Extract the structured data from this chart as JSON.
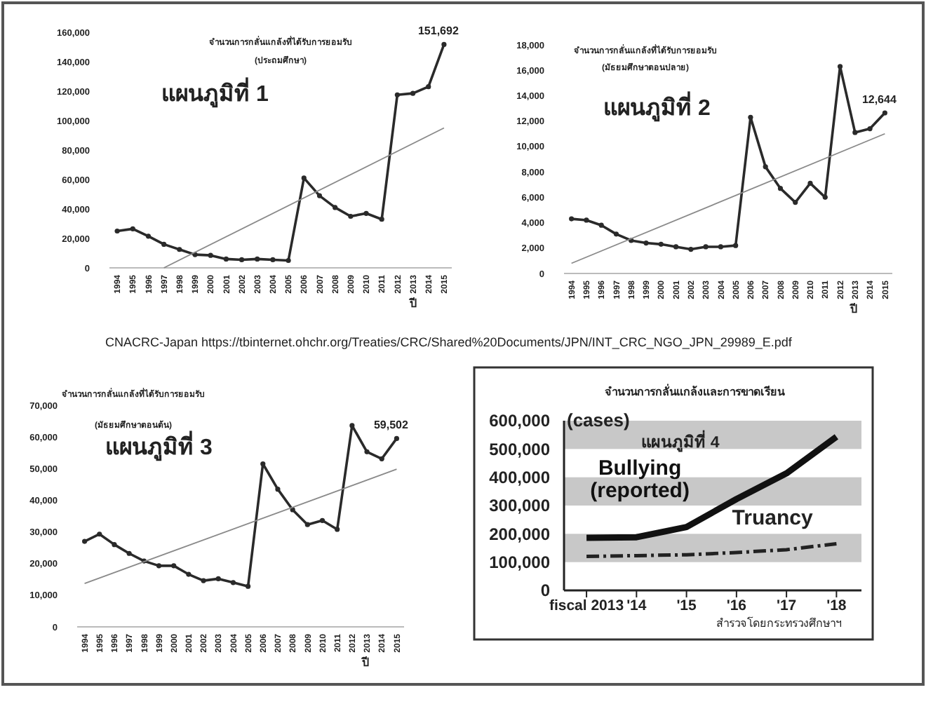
{
  "chart_data": [
    {
      "type": "line",
      "title": "จำนวนการกลั่นแกล้งที่ได้รับการยอมรับ",
      "subtitle": "(ประถมศึกษา)",
      "xlabel": "ปี",
      "x": [
        1994,
        1995,
        1996,
        1997,
        1998,
        1999,
        2000,
        2001,
        2002,
        2003,
        2004,
        2005,
        2006,
        2007,
        2008,
        2009,
        2010,
        2011,
        2012,
        2013,
        2014,
        2015
      ],
      "xlim": [
        1993.5,
        2015.5
      ],
      "xticks": [
        1994,
        1995,
        1996,
        1997,
        1998,
        1999,
        2000,
        2001,
        2002,
        2003,
        2004,
        2005,
        2006,
        2007,
        2008,
        2009,
        2010,
        2011,
        2012,
        2013,
        2014,
        2015
      ],
      "ylim": [
        0,
        160000
      ],
      "yticks": [
        {
          "value": 0,
          "label": "0"
        },
        {
          "value": 20000,
          "label": "20,000"
        },
        {
          "value": 40000,
          "label": "40,000"
        },
        {
          "value": 60000,
          "label": "60,000"
        },
        {
          "value": 80000,
          "label": "80,000"
        },
        {
          "value": 100000,
          "label": "100,000"
        },
        {
          "value": 120000,
          "label": "120,000"
        },
        {
          "value": 140000,
          "label": "140,000"
        },
        {
          "value": 160000,
          "label": "160,000"
        }
      ],
      "grid": false,
      "legend": false,
      "series": [
        {
          "color": "#2a2a2a",
          "marker": "circle",
          "values": [
            25000,
            26500,
            21500,
            16000,
            12500,
            9000,
            8500,
            6000,
            5500,
            6000,
            5500,
            5000,
            61000,
            49000,
            41000,
            35000,
            37000,
            33000,
            117500,
            118500,
            123000,
            151692
          ],
          "value_labels": [
            null,
            null,
            null,
            null,
            null,
            null,
            null,
            null,
            null,
            null,
            null,
            null,
            null,
            null,
            null,
            null,
            null,
            null,
            null,
            null,
            null,
            "151,692"
          ]
        },
        {
          "type": "line",
          "color": "#8a8a8a",
          "marker": "none",
          "x": [
            1997,
            2015
          ],
          "values": [
            0,
            95000
          ]
        }
      ],
      "annotations": [
        "แผนภูมิที่ 1",
        "CNACRC-Japan https://tbinternet.ohchr.org/Treaties/CRC/Shared%20Documents/JPN/INT_CRC_NGO_JPN_29989_E.pdf"
      ]
    },
    {
      "type": "line",
      "title": "จำนวนการกลั่นแกล้งที่ได้รับการยอมรับ",
      "subtitle": "(มัธยมศึกษาตอนปลาย)",
      "xlabel": "ปี",
      "x": [
        1994,
        1995,
        1996,
        1997,
        1998,
        1999,
        2000,
        2001,
        2002,
        2003,
        2004,
        2005,
        2006,
        2007,
        2008,
        2009,
        2010,
        2011,
        2012,
        2013,
        2014,
        2015
      ],
      "xlim": [
        1993.5,
        2015.5
      ],
      "xticks": [
        1994,
        1995,
        1996,
        1997,
        1998,
        1999,
        2000,
        2001,
        2002,
        2003,
        2004,
        2005,
        2006,
        2007,
        2008,
        2009,
        2010,
        2011,
        2012,
        2013,
        2014,
        2015
      ],
      "ylim": [
        0,
        18000
      ],
      "yticks": [
        {
          "value": 0,
          "label": "0"
        },
        {
          "value": 2000,
          "label": "2,000"
        },
        {
          "value": 4000,
          "label": "4,000"
        },
        {
          "value": 6000,
          "label": "6,000"
        },
        {
          "value": 8000,
          "label": "8,000"
        },
        {
          "value": 10000,
          "label": "10,000"
        },
        {
          "value": 12000,
          "label": "12,000"
        },
        {
          "value": 14000,
          "label": "14,000"
        },
        {
          "value": 16000,
          "label": "16,000"
        },
        {
          "value": 18000,
          "label": "18,000"
        }
      ],
      "grid": false,
      "legend": false,
      "series": [
        {
          "color": "#2a2a2a",
          "marker": "circle",
          "values": [
            4300,
            4200,
            3800,
            3100,
            2600,
            2400,
            2300,
            2100,
            1900,
            2100,
            2100,
            2200,
            12300,
            8400,
            6700,
            5600,
            7100,
            6000,
            16300,
            11100,
            11400,
            12644
          ],
          "value_labels": [
            null,
            null,
            null,
            null,
            null,
            null,
            null,
            null,
            null,
            null,
            null,
            null,
            null,
            null,
            null,
            null,
            null,
            null,
            null,
            null,
            null,
            "12,644"
          ]
        },
        {
          "type": "line",
          "color": "#8a8a8a",
          "marker": "none",
          "x": [
            1994,
            2015
          ],
          "values": [
            800,
            11000
          ]
        }
      ],
      "annotations": [
        "แผนภูมิที่ 2"
      ]
    },
    {
      "type": "line",
      "title": "จำนวนการกลั่นแกล้งที่ได้รับการยอมรับ",
      "subtitle": "(มัธยมศึกษาตอนต้น)",
      "xlabel": "ปี",
      "x": [
        1994,
        1995,
        1996,
        1997,
        1998,
        1999,
        2000,
        2001,
        2002,
        2003,
        2004,
        2005,
        2006,
        2007,
        2008,
        2009,
        2010,
        2011,
        2012,
        2013,
        2014,
        2015
      ],
      "xlim": [
        1993.5,
        2015.5
      ],
      "xticks": [
        1994,
        1995,
        1996,
        1997,
        1998,
        1999,
        2000,
        2001,
        2002,
        2003,
        2004,
        2005,
        2006,
        2007,
        2008,
        2009,
        2010,
        2011,
        2012,
        2013,
        2014,
        2015
      ],
      "ylim": [
        0,
        70000
      ],
      "yticks": [
        {
          "value": 0,
          "label": "0"
        },
        {
          "value": 10000,
          "label": "10,000"
        },
        {
          "value": 20000,
          "label": "20,000"
        },
        {
          "value": 30000,
          "label": "30,000"
        },
        {
          "value": 40000,
          "label": "40,000"
        },
        {
          "value": 50000,
          "label": "50,000"
        },
        {
          "value": 60000,
          "label": "60,000"
        },
        {
          "value": 70000,
          "label": "70,000"
        }
      ],
      "grid": false,
      "legend": false,
      "series": [
        {
          "color": "#2a2a2a",
          "marker": "circle",
          "values": [
            27000,
            29300,
            26000,
            23200,
            20800,
            19300,
            19300,
            16600,
            14600,
            15200,
            14000,
            12800,
            51500,
            43500,
            37000,
            32300,
            33600,
            30800,
            63600,
            55300,
            53100,
            59502
          ],
          "value_labels": [
            null,
            null,
            null,
            null,
            null,
            null,
            null,
            null,
            null,
            null,
            null,
            null,
            null,
            null,
            null,
            null,
            null,
            null,
            null,
            null,
            null,
            "59,502"
          ]
        },
        {
          "type": "line",
          "color": "#8a8a8a",
          "marker": "none",
          "x": [
            1994,
            2015
          ],
          "values": [
            13700,
            49800
          ]
        }
      ],
      "annotations": [
        "แผนภูมิที่ 3"
      ]
    },
    {
      "type": "line",
      "title": "จำนวนการกลั่นแกล้งและการขาดเรียน",
      "ylabel": "(cases)",
      "x": [
        2013,
        2014,
        2015,
        2016,
        2017,
        2018
      ],
      "xlim": [
        2012.55,
        2018.5
      ],
      "xticks": [
        {
          "value": 2013,
          "label": "fiscal 2013"
        },
        {
          "value": 2014,
          "label": "'14"
        },
        {
          "value": 2015,
          "label": "'15"
        },
        {
          "value": 2016,
          "label": "'16"
        },
        {
          "value": 2017,
          "label": "'17"
        },
        {
          "value": 2018,
          "label": "'18"
        }
      ],
      "ylim": [
        0,
        600000
      ],
      "yticks": [
        {
          "value": 0,
          "label": "0"
        },
        {
          "value": 100000,
          "label": "100,000"
        },
        {
          "value": 200000,
          "label": "200,000"
        },
        {
          "value": 300000,
          "label": "300,000"
        },
        {
          "value": 400000,
          "label": "400,000"
        },
        {
          "value": 500000,
          "label": "500,000"
        },
        {
          "value": 600000,
          "label": "600,000"
        }
      ],
      "grid": false,
      "legend": false,
      "marker": "none",
      "bands": [
        {
          "axis": "y",
          "from": 100000,
          "to": 200000,
          "color": "#c8c8c8"
        },
        {
          "axis": "y",
          "from": 300000,
          "to": 400000,
          "color": "#c8c8c8"
        },
        {
          "axis": "y",
          "from": 500000,
          "to": 600000,
          "color": "#c8c8c8"
        }
      ],
      "series": [
        {
          "name": "Bullying (reported)",
          "color": "#111111",
          "line_style": "solid",
          "values": [
            186000,
            188000,
            224000,
            323000,
            414000,
            543000
          ]
        },
        {
          "name": "Truancy",
          "color": "#222222",
          "line_style": "dashed",
          "values": [
            120000,
            123000,
            126000,
            134000,
            144000,
            165000
          ]
        }
      ],
      "annotations": [
        "แผนภูมิที่ 4",
        "สำรวจโดยกระทรวงศึกษาฯ"
      ]
    }
  ]
}
